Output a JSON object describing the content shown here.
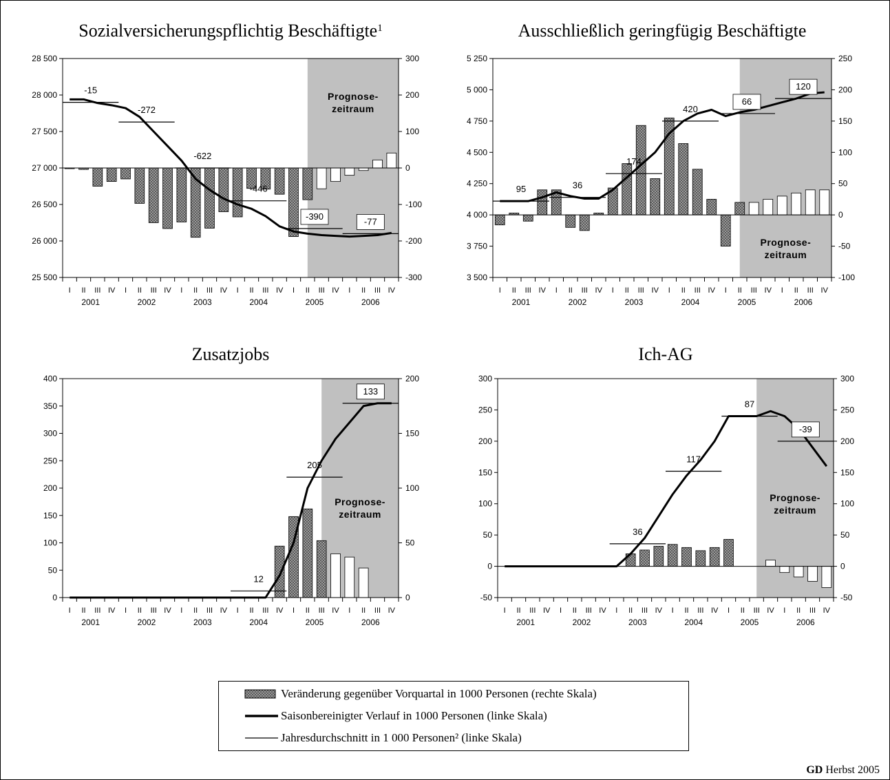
{
  "colors": {
    "hatched_bar": "#8c8c8c",
    "forecast_bar": "#ffffff",
    "forecast_area": "#c0c0c0",
    "line": "#000000"
  },
  "quarter_labels": [
    "I",
    "II",
    "III",
    "IV"
  ],
  "forecast_label_1": "Prognose-",
  "forecast_label_2": "zeitraum",
  "legend": {
    "bar": "Veränderung gegenüber Vorquartal in 1000 Personen (rechte Skala)",
    "line": "Saisonbereinigter Verlauf in 1000 Personen (linke Skala)",
    "avg": "Jahresdurchschnitt in 1 000 Personen² (linke Skala)"
  },
  "footer": {
    "brand": "GD",
    "text": " Herbst 2005"
  },
  "chart_data": [
    {
      "type": "bar",
      "title": "Sozialversicherungspflichtig Beschäftigte",
      "title_sup": "1",
      "years": [
        "2001",
        "2002",
        "2003",
        "2004",
        "2005",
        "2006"
      ],
      "left_axis": {
        "min": 25500,
        "max": 28500,
        "ticks": [
          25500,
          26000,
          26500,
          27000,
          27500,
          28000,
          28500
        ],
        "tick_labels": [
          "25 500",
          "26 000",
          "26 500",
          "27 000",
          "27 500",
          "28 000",
          "28 500"
        ]
      },
      "right_axis": {
        "min": -300,
        "max": 300,
        "ticks": [
          -300,
          -200,
          -100,
          0,
          100,
          200,
          300
        ],
        "tick_labels": [
          "-300",
          "-200",
          "-100",
          "0",
          "100",
          "200",
          "300"
        ]
      },
      "forecast_start_quarter": 17.5,
      "bars": [
        -2,
        -4,
        -50,
        -37,
        -30,
        -97,
        -150,
        -166,
        -148,
        -190,
        -165,
        -120,
        -134,
        -56,
        -58,
        -72,
        -188,
        -87,
        -57,
        -37,
        -20,
        -7,
        22,
        41
      ],
      "line": [
        27940,
        27940,
        27890,
        27860,
        27820,
        27700,
        27500,
        27300,
        27100,
        26850,
        26700,
        26580,
        26500,
        26440,
        26340,
        26200,
        26130,
        26100,
        26080,
        26070,
        26060,
        26070,
        26080,
        26110
      ],
      "annual_averages": [
        {
          "year_index": 0,
          "value": 27900,
          "label": "-15"
        },
        {
          "year_index": 1,
          "value": 27630,
          "label": "-272"
        },
        {
          "year_index": 2,
          "value": 27000,
          "label": "-622"
        },
        {
          "year_index": 3,
          "value": 26550,
          "label": "-446"
        },
        {
          "year_index": 4,
          "value": 26170,
          "label": "-390"
        },
        {
          "year_index": 5,
          "value": 26100,
          "label": "-77"
        }
      ]
    },
    {
      "type": "bar",
      "title": "Ausschließlich geringfügig Beschäftigte",
      "years": [
        "2001",
        "2002",
        "2003",
        "2004",
        "2005",
        "2006"
      ],
      "left_axis": {
        "min": 3500,
        "max": 5250,
        "ticks": [
          3500,
          3750,
          4000,
          4250,
          4500,
          4750,
          5000,
          5250
        ],
        "tick_labels": [
          "3 500",
          "3 750",
          "4 000",
          "4 250",
          "4 500",
          "4 750",
          "5 000",
          "5 250"
        ]
      },
      "right_axis": {
        "min": -100,
        "max": 250,
        "ticks": [
          -100,
          -50,
          0,
          50,
          100,
          150,
          200,
          250
        ],
        "tick_labels": [
          "-100",
          "-50",
          "0",
          "50",
          "100",
          "150",
          "200",
          "250"
        ]
      },
      "forecast_start_quarter": 17.5,
      "bars": [
        -16,
        3,
        -10,
        40,
        40,
        -20,
        -25,
        3,
        43,
        82,
        143,
        58,
        155,
        114,
        73,
        25,
        -50,
        20,
        20,
        25,
        30,
        35,
        40,
        40
      ],
      "line": [
        4110,
        4110,
        4110,
        4140,
        4180,
        4150,
        4130,
        4130,
        4200,
        4300,
        4400,
        4500,
        4650,
        4750,
        4810,
        4840,
        4790,
        4820,
        4840,
        4870,
        4900,
        4930,
        4970,
        4980
      ],
      "annual_averages": [
        {
          "year_index": 0,
          "value": 4110,
          "label": "95"
        },
        {
          "year_index": 1,
          "value": 4140,
          "label": "36"
        },
        {
          "year_index": 2,
          "value": 4330,
          "label": "174"
        },
        {
          "year_index": 3,
          "value": 4750,
          "label": "420"
        },
        {
          "year_index": 4,
          "value": 4810,
          "label": "66"
        },
        {
          "year_index": 5,
          "value": 4930,
          "label": "120"
        }
      ]
    },
    {
      "type": "bar",
      "title": "Zusatzjobs",
      "years": [
        "2001",
        "2002",
        "2003",
        "2004",
        "2005",
        "2006"
      ],
      "left_axis": {
        "min": 0,
        "max": 400,
        "ticks": [
          0,
          50,
          100,
          150,
          200,
          250,
          300,
          350,
          400
        ],
        "tick_labels": [
          "0",
          "50",
          "100",
          "150",
          "200",
          "250",
          "300",
          "350",
          "400"
        ]
      },
      "right_axis": {
        "min": 0,
        "max": 200,
        "ticks": [
          0,
          50,
          100,
          150,
          200
        ],
        "tick_labels": [
          "0",
          "50",
          "100",
          "150",
          "200"
        ]
      },
      "forecast_start_quarter": 18.5,
      "bars": [
        0,
        0,
        0,
        0,
        0,
        0,
        0,
        0,
        0,
        0,
        0,
        0,
        0,
        0,
        0,
        47,
        74,
        81,
        52,
        40,
        37,
        27,
        0,
        0
      ],
      "line": [
        0,
        0,
        0,
        0,
        0,
        0,
        0,
        0,
        0,
        0,
        0,
        0,
        0,
        0,
        0,
        40,
        100,
        200,
        250,
        290,
        320,
        350,
        355,
        355
      ],
      "annual_averages": [
        {
          "year_index": 3,
          "value": 12,
          "label": "12"
        },
        {
          "year_index": 4,
          "value": 220,
          "label": "205"
        },
        {
          "year_index": 5,
          "value": 355,
          "label": "133"
        }
      ]
    },
    {
      "type": "bar",
      "title": "Ich-AG",
      "years": [
        "2001",
        "2002",
        "2003",
        "2004",
        "2005",
        "2006"
      ],
      "left_axis": {
        "min": -50,
        "max": 300,
        "ticks": [
          -50,
          0,
          50,
          100,
          150,
          200,
          250,
          300
        ],
        "tick_labels": [
          "-50",
          "0",
          "50",
          "100",
          "150",
          "200",
          "250",
          "300"
        ]
      },
      "right_axis": {
        "min": -50,
        "max": 300,
        "ticks": [
          -50,
          0,
          50,
          100,
          150,
          200,
          250,
          300
        ],
        "tick_labels": [
          "-50",
          "0",
          "50",
          "100",
          "150",
          "200",
          "250",
          "300"
        ]
      },
      "forecast_start_quarter": 18.5,
      "bars": [
        0,
        0,
        0,
        0,
        0,
        0,
        0,
        0,
        0,
        20,
        26,
        32,
        35,
        30,
        25,
        30,
        43,
        0,
        0,
        10,
        -10,
        -17,
        -24,
        -34
      ],
      "line": [
        0,
        0,
        0,
        0,
        0,
        0,
        0,
        0,
        0,
        20,
        45,
        80,
        115,
        145,
        170,
        200,
        240,
        240,
        240,
        248,
        240,
        220,
        190,
        160
      ],
      "annual_averages": [
        {
          "year_index": 2,
          "value": 36,
          "label": "36"
        },
        {
          "year_index": 3,
          "value": 152,
          "label": "117"
        },
        {
          "year_index": 4,
          "value": 240,
          "label": "87"
        },
        {
          "year_index": 5,
          "value": 200,
          "label": "-39"
        }
      ]
    }
  ]
}
